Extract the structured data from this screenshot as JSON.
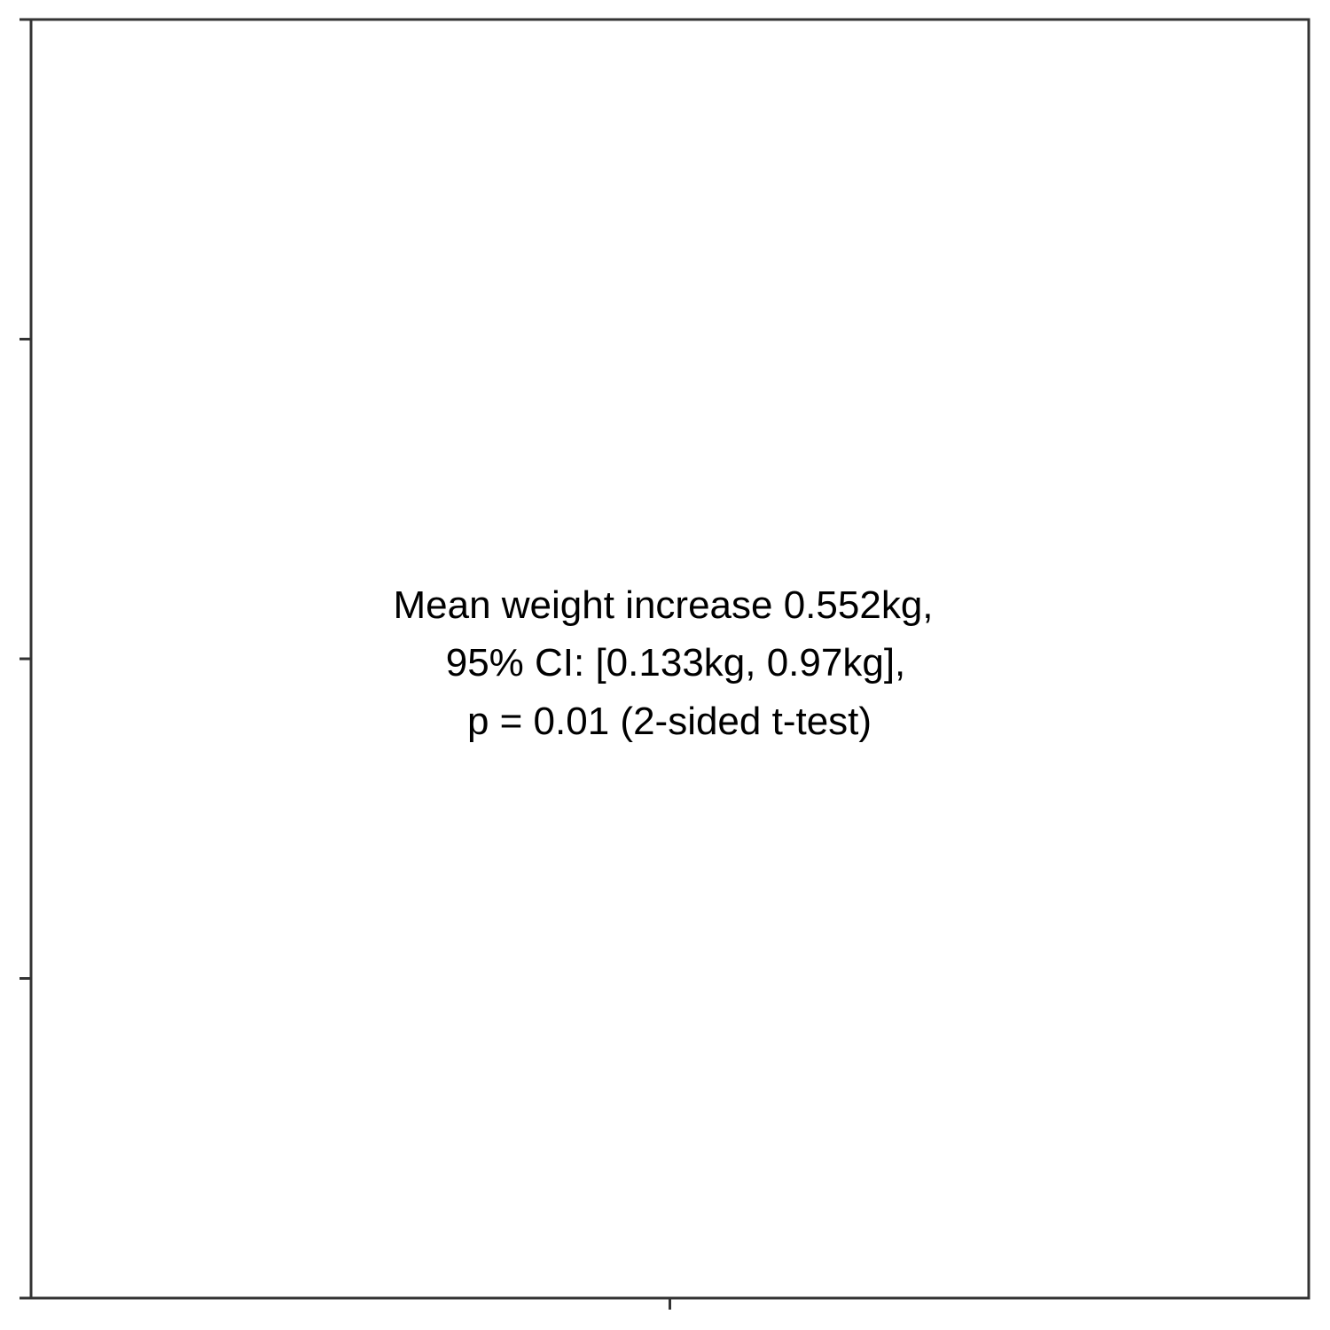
{
  "chart_data": {
    "type": "scatter",
    "title": "",
    "xlabel": "",
    "ylabel": "",
    "series": [],
    "grid": false,
    "legend": "none",
    "frame_color": "#333333",
    "x_tick_count": 1,
    "y_tick_count": 5,
    "annotation": {
      "lines": [
        "Mean weight increase 0.552kg,",
        "95% CI: [0.133kg, 0.97kg],",
        "p = 0.01 (2-sided t-test)"
      ]
    }
  }
}
